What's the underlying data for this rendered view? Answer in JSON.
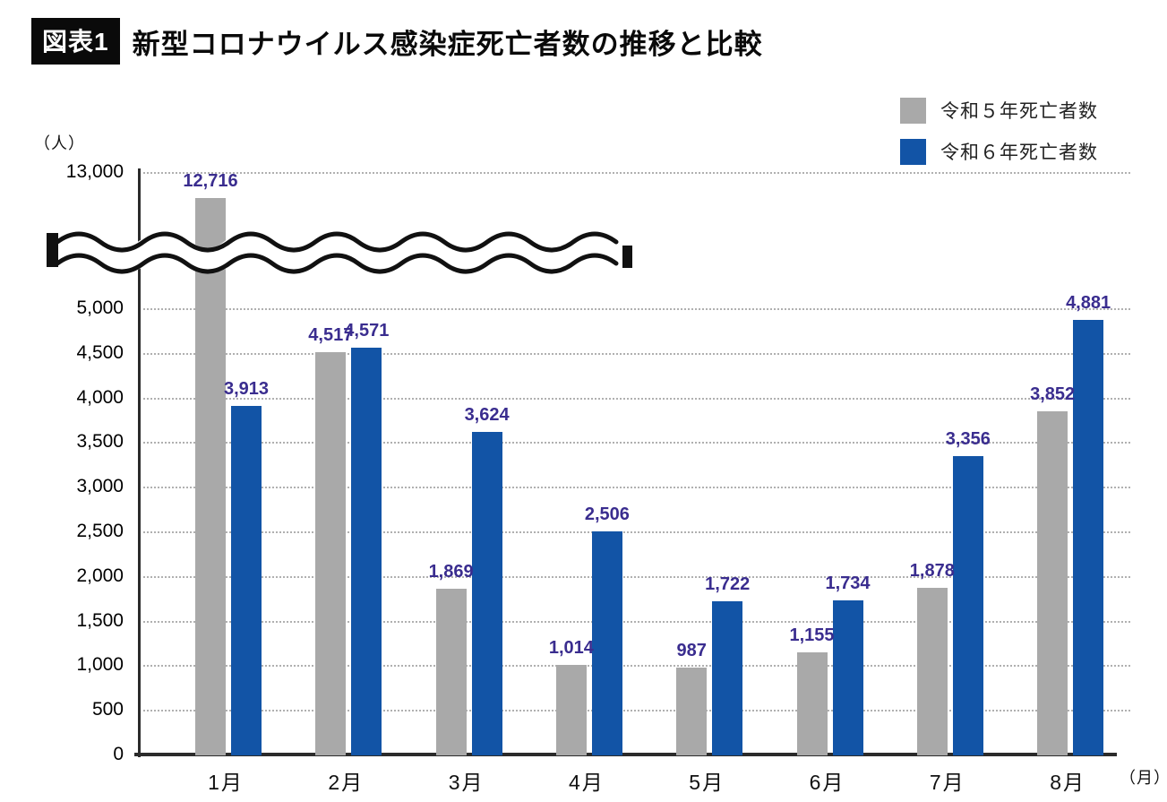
{
  "header": {
    "badge": "図表1",
    "title": "新型コロナウイルス感染症死亡者数の推移と比較"
  },
  "legend": {
    "items": [
      {
        "label": "令和５年死亡者数",
        "color": "#a9a9a9"
      },
      {
        "label": "令和６年死亡者数",
        "color": "#1254a6"
      }
    ],
    "position": "top-right"
  },
  "axis": {
    "y_unit": "（人）",
    "x_unit": "（月）"
  },
  "chart_data": {
    "type": "bar",
    "title": "新型コロナウイルス感染症死亡者数の推移と比較",
    "categories": [
      "1月",
      "2月",
      "3月",
      "4月",
      "5月",
      "6月",
      "7月",
      "8月"
    ],
    "series": [
      {
        "name": "令和５年死亡者数",
        "color": "#a9a9a9",
        "values": [
          12716,
          4517,
          1869,
          1014,
          987,
          1155,
          1878,
          3852
        ]
      },
      {
        "name": "令和６年死亡者数",
        "color": "#1254a6",
        "values": [
          3913,
          4571,
          3624,
          2506,
          1722,
          1734,
          3356,
          4881
        ]
      }
    ],
    "xlabel": "（月）",
    "ylabel": "（人）",
    "yticks": [
      0,
      500,
      1000,
      1500,
      2000,
      2500,
      3000,
      3500,
      4000,
      4500,
      5000,
      13000
    ],
    "axis_break": {
      "between_low": 5000,
      "between_high": 13000
    },
    "grid": true,
    "legend_position": "top-right",
    "value_label_color": "#3a2d8f"
  }
}
